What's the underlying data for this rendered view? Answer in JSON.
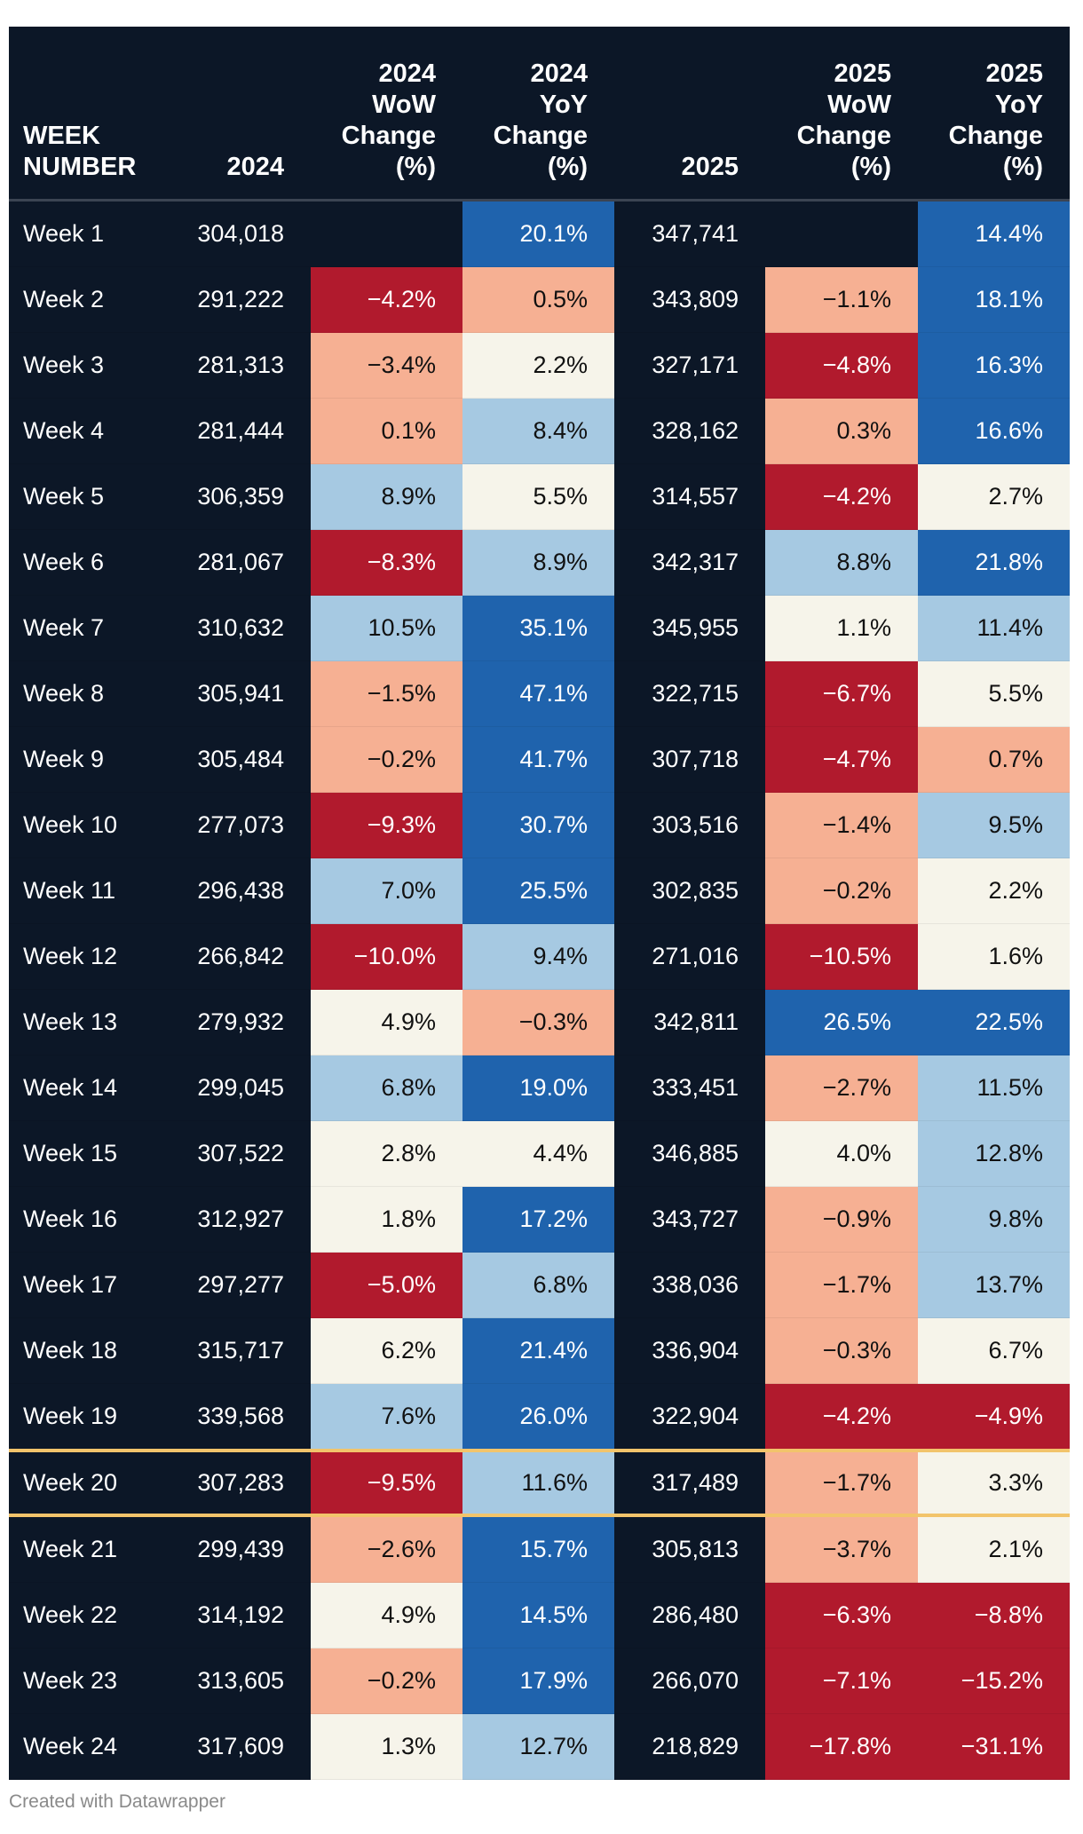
{
  "table": {
    "headers": [
      "WEEK NUMBER",
      "2024",
      "2024 WoW Change (%)",
      "2024 YoY Change (%)",
      "2025",
      "2025 WoW Change (%)",
      "2025 YoY Change (%)"
    ],
    "highlight_row": "Week 20",
    "colors": {
      "dark_red": "#b11a2d",
      "light_red": "#f6b093",
      "neutral": "#f6f4ea",
      "light_blue": "#a6c9e2",
      "dark_blue": "#1f63ad",
      "background": "#0c1727",
      "highlight_line": "#f2c46b"
    },
    "rows": [
      {
        "week": "Week 1",
        "v2024": "304,018",
        "wow2024": "",
        "yoy2024": "20.1%",
        "v2025": "347,741",
        "wow2025": "",
        "yoy2025": "14.4%"
      },
      {
        "week": "Week 2",
        "v2024": "291,222",
        "wow2024": "−4.2%",
        "yoy2024": "0.5%",
        "v2025": "343,809",
        "wow2025": "−1.1%",
        "yoy2025": "18.1%"
      },
      {
        "week": "Week 3",
        "v2024": "281,313",
        "wow2024": "−3.4%",
        "yoy2024": "2.2%",
        "v2025": "327,171",
        "wow2025": "−4.8%",
        "yoy2025": "16.3%"
      },
      {
        "week": "Week 4",
        "v2024": "281,444",
        "wow2024": "0.1%",
        "yoy2024": "8.4%",
        "v2025": "328,162",
        "wow2025": "0.3%",
        "yoy2025": "16.6%"
      },
      {
        "week": "Week 5",
        "v2024": "306,359",
        "wow2024": "8.9%",
        "yoy2024": "5.5%",
        "v2025": "314,557",
        "wow2025": "−4.2%",
        "yoy2025": "2.7%"
      },
      {
        "week": "Week 6",
        "v2024": "281,067",
        "wow2024": "−8.3%",
        "yoy2024": "8.9%",
        "v2025": "342,317",
        "wow2025": "8.8%",
        "yoy2025": "21.8%"
      },
      {
        "week": "Week 7",
        "v2024": "310,632",
        "wow2024": "10.5%",
        "yoy2024": "35.1%",
        "v2025": "345,955",
        "wow2025": "1.1%",
        "yoy2025": "11.4%"
      },
      {
        "week": "Week 8",
        "v2024": "305,941",
        "wow2024": "−1.5%",
        "yoy2024": "47.1%",
        "v2025": "322,715",
        "wow2025": "−6.7%",
        "yoy2025": "5.5%"
      },
      {
        "week": "Week 9",
        "v2024": "305,484",
        "wow2024": "−0.2%",
        "yoy2024": "41.7%",
        "v2025": "307,718",
        "wow2025": "−4.7%",
        "yoy2025": "0.7%"
      },
      {
        "week": "Week 10",
        "v2024": "277,073",
        "wow2024": "−9.3%",
        "yoy2024": "30.7%",
        "v2025": "303,516",
        "wow2025": "−1.4%",
        "yoy2025": "9.5%"
      },
      {
        "week": "Week 11",
        "v2024": "296,438",
        "wow2024": "7.0%",
        "yoy2024": "25.5%",
        "v2025": "302,835",
        "wow2025": "−0.2%",
        "yoy2025": "2.2%"
      },
      {
        "week": "Week 12",
        "v2024": "266,842",
        "wow2024": "−10.0%",
        "yoy2024": "9.4%",
        "v2025": "271,016",
        "wow2025": "−10.5%",
        "yoy2025": "1.6%"
      },
      {
        "week": "Week 13",
        "v2024": "279,932",
        "wow2024": "4.9%",
        "yoy2024": "−0.3%",
        "v2025": "342,811",
        "wow2025": "26.5%",
        "yoy2025": "22.5%"
      },
      {
        "week": "Week 14",
        "v2024": "299,045",
        "wow2024": "6.8%",
        "yoy2024": "19.0%",
        "v2025": "333,451",
        "wow2025": "−2.7%",
        "yoy2025": "11.5%"
      },
      {
        "week": "Week 15",
        "v2024": "307,522",
        "wow2024": "2.8%",
        "yoy2024": "4.4%",
        "v2025": "346,885",
        "wow2025": "4.0%",
        "yoy2025": "12.8%"
      },
      {
        "week": "Week 16",
        "v2024": "312,927",
        "wow2024": "1.8%",
        "yoy2024": "17.2%",
        "v2025": "343,727",
        "wow2025": "−0.9%",
        "yoy2025": "9.8%"
      },
      {
        "week": "Week 17",
        "v2024": "297,277",
        "wow2024": "−5.0%",
        "yoy2024": "6.8%",
        "v2025": "338,036",
        "wow2025": "−1.7%",
        "yoy2025": "13.7%"
      },
      {
        "week": "Week 18",
        "v2024": "315,717",
        "wow2024": "6.2%",
        "yoy2024": "21.4%",
        "v2025": "336,904",
        "wow2025": "−0.3%",
        "yoy2025": "6.7%"
      },
      {
        "week": "Week 19",
        "v2024": "339,568",
        "wow2024": "7.6%",
        "yoy2024": "26.0%",
        "v2025": "322,904",
        "wow2025": "−4.2%",
        "yoy2025": "−4.9%"
      },
      {
        "week": "Week 20",
        "v2024": "307,283",
        "wow2024": "−9.5%",
        "yoy2024": "11.6%",
        "v2025": "317,489",
        "wow2025": "−1.7%",
        "yoy2025": "3.3%"
      },
      {
        "week": "Week 21",
        "v2024": "299,439",
        "wow2024": "−2.6%",
        "yoy2024": "15.7%",
        "v2025": "305,813",
        "wow2025": "−3.7%",
        "yoy2025": "2.1%"
      },
      {
        "week": "Week 22",
        "v2024": "314,192",
        "wow2024": "4.9%",
        "yoy2024": "14.5%",
        "v2025": "286,480",
        "wow2025": "−6.3%",
        "yoy2025": "−8.8%"
      },
      {
        "week": "Week 23",
        "v2024": "313,605",
        "wow2024": "−0.2%",
        "yoy2024": "17.9%",
        "v2025": "266,070",
        "wow2025": "−7.1%",
        "yoy2025": "−15.2%"
      },
      {
        "week": "Week 24",
        "v2024": "317,609",
        "wow2024": "1.3%",
        "yoy2024": "12.7%",
        "v2025": "218,829",
        "wow2025": "−17.8%",
        "yoy2025": "−31.1%"
      }
    ]
  },
  "footer": {
    "credit": "Created with Datawrapper"
  }
}
